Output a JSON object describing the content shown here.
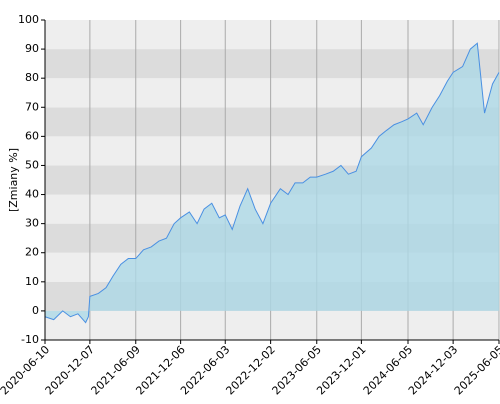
{
  "chart_data": {
    "type": "area",
    "y_label": "[Zmiany %]",
    "x": [
      "2020-06-10",
      "2020-07-15",
      "2020-08-20",
      "2020-09-20",
      "2020-10-20",
      "2020-11-20",
      "2020-12-01",
      "2020-12-07",
      "2021-01-10",
      "2021-02-10",
      "2021-03-10",
      "2021-04-10",
      "2021-05-10",
      "2021-06-09",
      "2021-07-10",
      "2021-08-10",
      "2021-09-10",
      "2021-10-10",
      "2021-11-10",
      "2021-12-06",
      "2022-01-10",
      "2022-02-10",
      "2022-03-10",
      "2022-04-10",
      "2022-05-10",
      "2022-06-03",
      "2022-07-01",
      "2022-08-01",
      "2022-09-01",
      "2022-10-01",
      "2022-11-01",
      "2022-12-02",
      "2023-01-10",
      "2023-02-10",
      "2023-03-10",
      "2023-04-10",
      "2023-05-10",
      "2023-06-05",
      "2023-07-10",
      "2023-08-10",
      "2023-09-10",
      "2023-10-10",
      "2023-11-10",
      "2023-12-01",
      "2024-01-10",
      "2024-02-10",
      "2024-03-10",
      "2024-04-10",
      "2024-05-10",
      "2024-06-05",
      "2024-07-10",
      "2024-08-05",
      "2024-09-10",
      "2024-10-10",
      "2024-11-10",
      "2024-12-03",
      "2025-01-10",
      "2025-02-10",
      "2025-03-10",
      "2025-04-08",
      "2025-05-10",
      "2025-06-05"
    ],
    "values": [
      -2,
      -3,
      0,
      -2,
      -1,
      -4,
      -2,
      5,
      6,
      8,
      12,
      16,
      18,
      18,
      21,
      22,
      24,
      25,
      30,
      32,
      34,
      30,
      35,
      37,
      32,
      33,
      28,
      36,
      42,
      35,
      30,
      37,
      42,
      40,
      44,
      44,
      46,
      46,
      47,
      48,
      50,
      47,
      48,
      53,
      56,
      60,
      62,
      64,
      65,
      66,
      68,
      64,
      70,
      74,
      79,
      82,
      84,
      90,
      92,
      68,
      78,
      82
    ],
    "line_color": "#4a90e2",
    "fill_color": "#add8e6",
    "xlim": [
      "2020-06-10",
      "2025-06-05"
    ],
    "xticks": [
      "2020-06-10",
      "2020-12-07",
      "2021-06-09",
      "2021-12-06",
      "2022-06-03",
      "2022-12-02",
      "2023-06-05",
      "2023-12-01",
      "2024-06-05",
      "2024-12-03",
      "2025-06-05"
    ],
    "ylim": [
      -10,
      100
    ],
    "yticks": [
      -10,
      0,
      10,
      20,
      30,
      40,
      50,
      60,
      70,
      80,
      90,
      100
    ],
    "grid": true
  }
}
